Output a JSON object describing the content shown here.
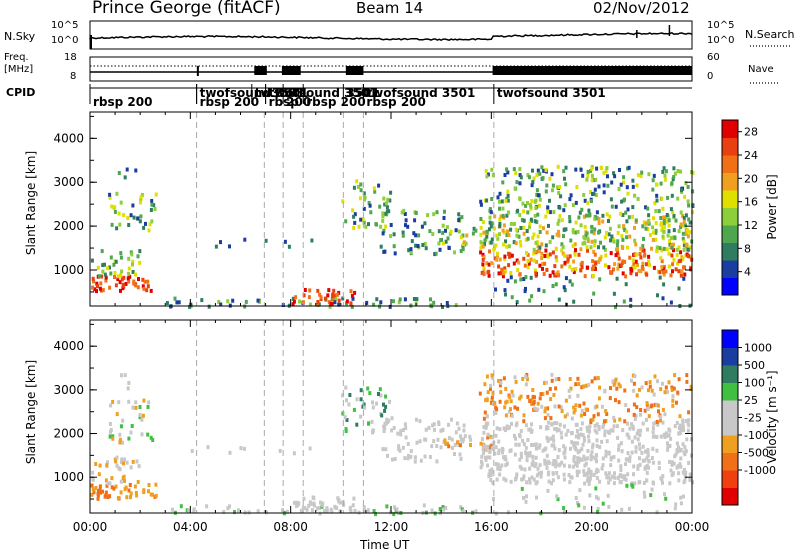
{
  "header": {
    "station": "Prince George (fitACF)",
    "beam": "Beam 14",
    "date": "02/Nov/2012"
  },
  "strip": {
    "nsky_label": "N.Sky",
    "nsearch_label": "N.Search",
    "noise_ticks": [
      "10^5",
      "10^0"
    ],
    "freq_label_1": "Freq.",
    "freq_label_2": "[MHz]",
    "freq_ticks": [
      "18",
      "8"
    ],
    "nave_label": "Nave",
    "nave_ticks": [
      "60",
      "0"
    ],
    "cpid_label": "CPID"
  },
  "colors": {
    "power": [
      "#0000ff",
      "#1a3ea0",
      "#2e7d60",
      "#4ea64e",
      "#8ccf3a",
      "#e0e000",
      "#f0a020",
      "#f07018",
      "#e84010",
      "#e00000"
    ],
    "velocity": [
      "#e00000",
      "#f04010",
      "#f07018",
      "#f0a020",
      "#c8c8c8",
      "#c8c8c8",
      "#40c040",
      "#2e7d60",
      "#1a3ea0",
      "#0000ff"
    ]
  },
  "chart_data": [
    {
      "type": "heatmap",
      "name": "power-panel",
      "ylabel": "Slant Range [km]",
      "yticks": [
        1000,
        2000,
        3000,
        4000
      ],
      "ylim": [
        180,
        4600
      ],
      "xlim": [
        0,
        24
      ],
      "colorbar": {
        "label": "Power [dB]",
        "ticks": [
          "4",
          "8",
          "12",
          "16",
          "20",
          "24",
          "28"
        ],
        "range": [
          0,
          30
        ]
      }
    },
    {
      "type": "heatmap",
      "name": "velocity-panel",
      "xlabel": "Time UT",
      "ylabel": "Slant Range [km]",
      "yticks": [
        1000,
        2000,
        3000,
        4000
      ],
      "ylim": [
        180,
        4600
      ],
      "xlim": [
        0,
        24
      ],
      "xticks": [
        "00:00",
        "04:00",
        "08:00",
        "12:00",
        "16:00",
        "20:00",
        "00:00"
      ],
      "colorbar": {
        "label": "Velocity [m s⁻¹]",
        "ticks": [
          "1000",
          "500",
          "100",
          "25",
          "-25",
          "-100",
          "-500",
          "-1000"
        ]
      }
    }
  ],
  "cpid_segments": [
    {
      "start": 0,
      "label": "rbsp 200",
      "row": 1
    },
    {
      "start": 4.25,
      "label": "twofsound 3501",
      "row": 0
    },
    {
      "start": 4.25,
      "label": "rbsp 200",
      "row": 1
    },
    {
      "start": 6.45,
      "label": "tw3501",
      "row": 0
    },
    {
      "start": 7.0,
      "label": "twofsound 3501",
      "row": 0
    },
    {
      "start": 7.0,
      "label": "rbsp",
      "row": 1
    },
    {
      "start": 7.7,
      "label": "200",
      "row": 1
    },
    {
      "start": 8.5,
      "label": "rbsp 200",
      "row": 1
    },
    {
      "start": 10.1,
      "label": "3501",
      "row": 0
    },
    {
      "start": 10.9,
      "label": "twofsound 3501",
      "row": 0
    },
    {
      "start": 10.9,
      "label": "rbsp 200",
      "row": 1
    },
    {
      "start": 16.1,
      "label": "twofsound 3501",
      "row": 0
    }
  ],
  "freq_blocks": [
    [
      6.55,
      7.05
    ],
    [
      7.65,
      8.4
    ],
    [
      10.2,
      10.9
    ],
    [
      16.05,
      24
    ]
  ]
}
